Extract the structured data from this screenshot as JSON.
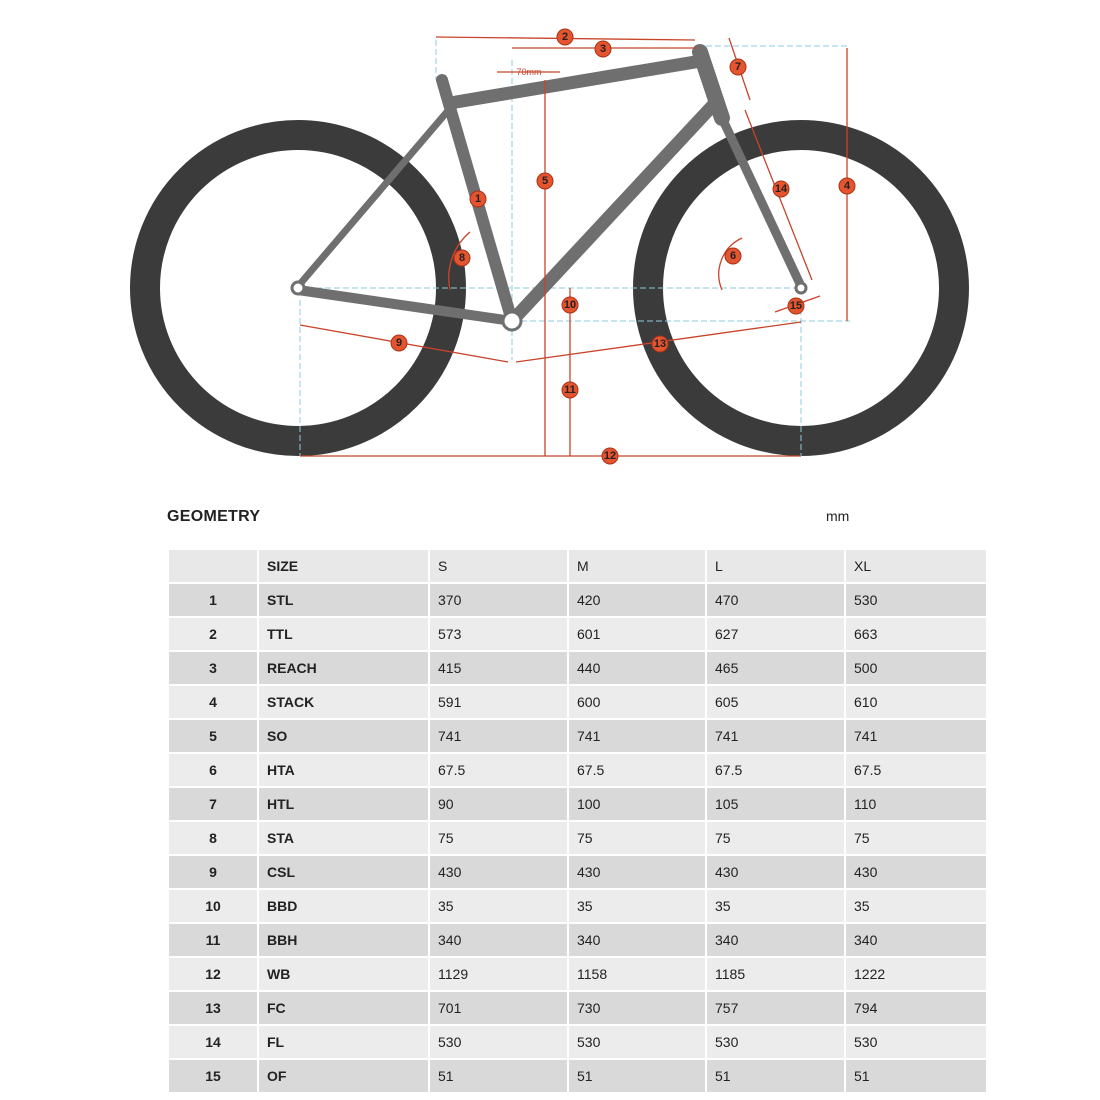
{
  "diagram": {
    "markers": [
      "1",
      "2",
      "3",
      "4",
      "5",
      "6",
      "7",
      "8",
      "9",
      "10",
      "11",
      "12",
      "13",
      "14",
      "15"
    ],
    "offset_label": "70mm"
  },
  "header": {
    "title": "GEOMETRY",
    "unit": "mm"
  },
  "table": {
    "header": [
      "",
      "SIZE",
      "S",
      "M",
      "L",
      "XL"
    ],
    "rows": [
      [
        "1",
        "STL",
        "370",
        "420",
        "470",
        "530"
      ],
      [
        "2",
        "TTL",
        "573",
        "601",
        "627",
        "663"
      ],
      [
        "3",
        "REACH",
        "415",
        "440",
        "465",
        "500"
      ],
      [
        "4",
        "STACK",
        "591",
        "600",
        "605",
        "610"
      ],
      [
        "5",
        "SO",
        "741",
        "741",
        "741",
        "741"
      ],
      [
        "6",
        "HTA",
        "67.5",
        "67.5",
        "67.5",
        "67.5"
      ],
      [
        "7",
        "HTL",
        "90",
        "100",
        "105",
        "110"
      ],
      [
        "8",
        "STA",
        "75",
        "75",
        "75",
        "75"
      ],
      [
        "9",
        "CSL",
        "430",
        "430",
        "430",
        "430"
      ],
      [
        "10",
        "BBD",
        "35",
        "35",
        "35",
        "35"
      ],
      [
        "11",
        "BBH",
        "340",
        "340",
        "340",
        "340"
      ],
      [
        "12",
        "WB",
        "1129",
        "1158",
        "1185",
        "1222"
      ],
      [
        "13",
        "FC",
        "701",
        "730",
        "757",
        "794"
      ],
      [
        "14",
        "FL",
        "530",
        "530",
        "530",
        "530"
      ],
      [
        "15",
        "OF",
        "51",
        "51",
        "51",
        "51"
      ]
    ]
  }
}
